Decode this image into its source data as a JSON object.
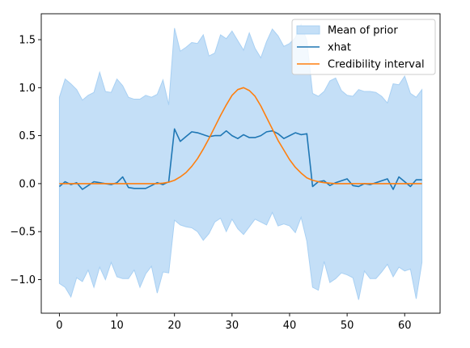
{
  "chart_data": {
    "type": "line",
    "title": "",
    "xlabel": "",
    "ylabel": "",
    "xlim": [
      -3.15,
      66.15
    ],
    "ylim": [
      -1.35,
      1.77
    ],
    "grid": false,
    "legend_position": "top-right",
    "x_ticks": [
      0,
      10,
      20,
      30,
      40,
      50,
      60
    ],
    "x_tick_labels": [
      "0",
      "10",
      "20",
      "30",
      "40",
      "50",
      "60"
    ],
    "y_ticks": [
      -1.0,
      -0.5,
      0.0,
      0.5,
      1.0,
      1.5
    ],
    "y_tick_labels": [
      "−1.0",
      "−0.5",
      "0.0",
      "0.5",
      "1.0",
      "1.5"
    ],
    "x": [
      0,
      1,
      2,
      3,
      4,
      5,
      6,
      7,
      8,
      9,
      10,
      11,
      12,
      13,
      14,
      15,
      16,
      17,
      18,
      19,
      20,
      21,
      22,
      23,
      24,
      25,
      26,
      27,
      28,
      29,
      30,
      31,
      32,
      33,
      34,
      35,
      36,
      37,
      38,
      39,
      40,
      41,
      42,
      43,
      44,
      45,
      46,
      47,
      48,
      49,
      50,
      51,
      52,
      53,
      54,
      55,
      56,
      57,
      58,
      59,
      60,
      61,
      62,
      63
    ],
    "band": {
      "name": "Mean of prior",
      "color": "#c4dff7",
      "edge_color": "#a8d0f3",
      "upper": [
        0.9,
        1.09,
        1.04,
        0.98,
        0.87,
        0.92,
        0.95,
        1.16,
        0.96,
        0.95,
        1.09,
        1.02,
        0.9,
        0.88,
        0.88,
        0.92,
        0.9,
        0.93,
        1.08,
        0.82,
        1.62,
        1.38,
        1.42,
        1.47,
        1.46,
        1.55,
        1.33,
        1.36,
        1.55,
        1.51,
        1.59,
        1.49,
        1.39,
        1.57,
        1.41,
        1.31,
        1.48,
        1.61,
        1.54,
        1.43,
        1.46,
        1.52,
        1.66,
        1.49,
        0.94,
        0.91,
        0.96,
        1.07,
        1.1,
        0.97,
        0.92,
        0.91,
        0.98,
        0.96,
        0.96,
        0.95,
        0.91,
        0.84,
        1.04,
        1.03,
        1.12,
        0.94,
        0.9,
        0.98
      ],
      "lower": [
        -1.04,
        -1.08,
        -1.18,
        -0.98,
        -1.02,
        -0.9,
        -1.08,
        -0.87,
        -1.0,
        -0.82,
        -0.97,
        -0.99,
        -0.99,
        -0.9,
        -1.08,
        -0.94,
        -0.86,
        -1.14,
        -0.92,
        -0.93,
        -0.38,
        -0.43,
        -0.45,
        -0.46,
        -0.5,
        -0.59,
        -0.52,
        -0.4,
        -0.36,
        -0.5,
        -0.37,
        -0.47,
        -0.53,
        -0.45,
        -0.37,
        -0.4,
        -0.43,
        -0.3,
        -0.44,
        -0.42,
        -0.44,
        -0.51,
        -0.35,
        -0.6,
        -1.08,
        -1.11,
        -0.81,
        -1.03,
        -0.99,
        -0.93,
        -0.95,
        -0.98,
        -1.21,
        -0.91,
        -0.99,
        -0.99,
        -0.92,
        -0.84,
        -0.97,
        -0.87,
        -0.91,
        -0.89,
        -1.2,
        -0.82
      ]
    },
    "series": [
      {
        "name": "xhat",
        "color": "#1f77b4",
        "values": [
          -0.03,
          0.02,
          -0.01,
          0.01,
          -0.06,
          -0.02,
          0.02,
          0.01,
          0.0,
          -0.01,
          0.01,
          0.07,
          -0.04,
          -0.05,
          -0.05,
          -0.05,
          -0.02,
          0.01,
          -0.01,
          0.02,
          0.57,
          0.44,
          0.49,
          0.54,
          0.53,
          0.51,
          0.49,
          0.5,
          0.5,
          0.55,
          0.5,
          0.47,
          0.51,
          0.48,
          0.48,
          0.5,
          0.54,
          0.55,
          0.52,
          0.47,
          0.5,
          0.53,
          0.51,
          0.52,
          -0.03,
          0.02,
          0.03,
          -0.02,
          0.01,
          0.03,
          0.05,
          -0.02,
          -0.03,
          0.0,
          -0.01,
          0.01,
          0.03,
          0.05,
          -0.06,
          0.07,
          0.02,
          -0.03,
          0.04,
          0.04
        ]
      },
      {
        "name": "Credibility interval",
        "color": "#ff7f0e",
        "values": [
          0.0,
          0.0,
          0.0,
          0.0,
          0.0,
          0.0,
          0.0,
          0.0,
          0.0,
          0.0,
          0.0,
          0.0,
          0.0,
          0.0,
          0.0,
          0.0,
          0.0,
          0.0,
          0.005,
          0.015,
          0.035,
          0.07,
          0.115,
          0.18,
          0.26,
          0.36,
          0.47,
          0.59,
          0.71,
          0.82,
          0.92,
          0.98,
          1.0,
          0.97,
          0.91,
          0.81,
          0.69,
          0.57,
          0.45,
          0.35,
          0.25,
          0.17,
          0.11,
          0.06,
          0.035,
          0.02,
          0.01,
          0.005,
          0.0,
          0.0,
          0.0,
          0.0,
          0.0,
          0.0,
          0.0,
          0.0,
          0.0,
          0.0,
          0.0,
          0.0,
          0.0,
          0.0,
          0.0,
          0.0
        ]
      }
    ]
  }
}
